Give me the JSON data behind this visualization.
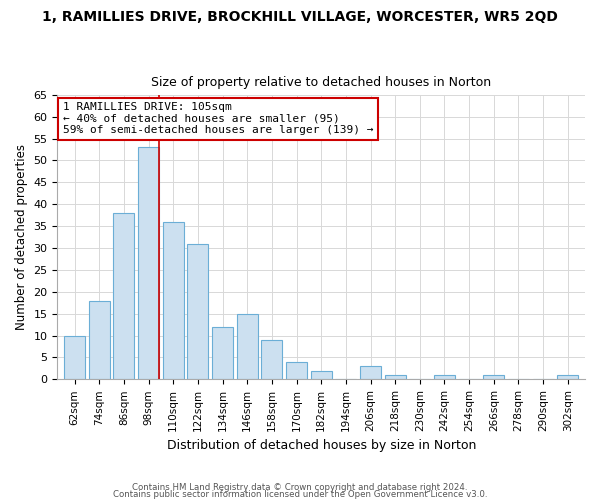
{
  "title_main": "1, RAMILLIES DRIVE, BROCKHILL VILLAGE, WORCESTER, WR5 2QD",
  "title_sub": "Size of property relative to detached houses in Norton",
  "xlabel": "Distribution of detached houses by size in Norton",
  "ylabel": "Number of detached properties",
  "bar_labels": [
    "62sqm",
    "74sqm",
    "86sqm",
    "98sqm",
    "110sqm",
    "122sqm",
    "134sqm",
    "146sqm",
    "158sqm",
    "170sqm",
    "182sqm",
    "194sqm",
    "206sqm",
    "218sqm",
    "230sqm",
    "242sqm",
    "254sqm",
    "266sqm",
    "278sqm",
    "290sqm",
    "302sqm"
  ],
  "bar_values": [
    10,
    18,
    38,
    53,
    36,
    31,
    12,
    15,
    9,
    4,
    2,
    0,
    3,
    1,
    0,
    1,
    0,
    1,
    0,
    0,
    1
  ],
  "bar_color": "#cce0f0",
  "bar_edge_color": "#6baed6",
  "annotation_line1": "1 RAMILLIES DRIVE: 105sqm",
  "annotation_line2": "← 40% of detached houses are smaller (95)",
  "annotation_line3": "59% of semi-detached houses are larger (139) →",
  "annotation_box_color": "white",
  "annotation_box_edge": "#cc0000",
  "ylim": [
    0,
    65
  ],
  "yticks": [
    0,
    5,
    10,
    15,
    20,
    25,
    30,
    35,
    40,
    45,
    50,
    55,
    60,
    65
  ],
  "footer1": "Contains HM Land Registry data © Crown copyright and database right 2024.",
  "footer2": "Contains public sector information licensed under the Open Government Licence v3.0.",
  "background_color": "#ffffff",
  "grid_color": "#d8d8d8"
}
